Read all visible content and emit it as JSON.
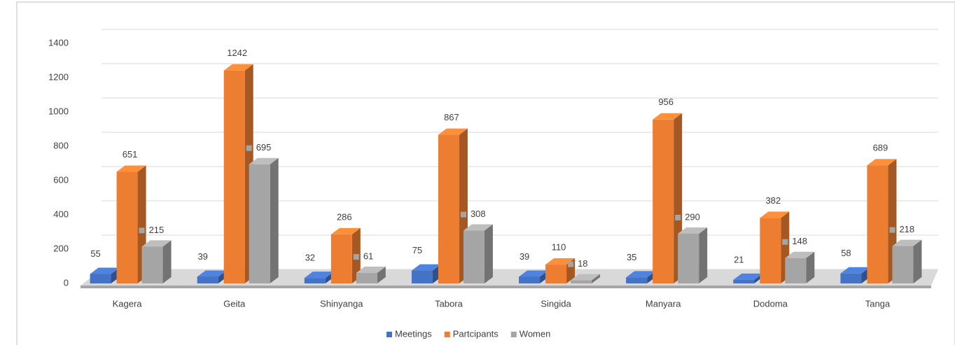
{
  "chart_data": {
    "type": "bar3d",
    "categories": [
      "Kagera",
      "Geita",
      "Shinyanga",
      "Tabora",
      "Singida",
      "Manyara",
      "Dodoma",
      "Tanga"
    ],
    "series": [
      {
        "name": "Meetings",
        "color": "#4472c4",
        "values": [
          55,
          39,
          32,
          75,
          39,
          35,
          21,
          58
        ]
      },
      {
        "name": "Partcipants",
        "color": "#ed7d31",
        "values": [
          651,
          1242,
          286,
          867,
          110,
          956,
          382,
          689
        ]
      },
      {
        "name": "Women",
        "color": "#a5a5a5",
        "values": [
          215,
          695,
          61,
          308,
          18,
          290,
          148,
          218
        ]
      }
    ],
    "ylim": [
      0,
      1400
    ],
    "yticks": [
      0,
      200,
      400,
      600,
      800,
      1000,
      1200,
      1400
    ],
    "grid": true,
    "legend": "bottom"
  }
}
